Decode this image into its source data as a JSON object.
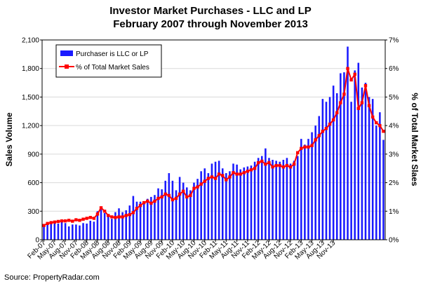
{
  "chart_data": {
    "type": "bar",
    "title": "Investor Market Purchases - LLC and LP",
    "subtitle": "February 2007 through November 2013",
    "ylabel": "Sales Volume",
    "y2label": "% of Total Market Slaes",
    "ylim": [
      0,
      2100
    ],
    "y2lim": [
      0,
      7
    ],
    "yticks": [
      "0",
      "300",
      "600",
      "900",
      "1,200",
      "1,500",
      "1,800",
      "2,100"
    ],
    "y2ticks": [
      "0%",
      "1%",
      "2%",
      "3%",
      "4%",
      "5%",
      "6%",
      "7%"
    ],
    "xtick_labels": [
      "Feb-07",
      "May-07",
      "Aug-07",
      "Nov-07",
      "Feb-08",
      "May-08",
      "Aug-08",
      "Nov-08",
      "Feb-09",
      "May-09",
      "Aug-09",
      "Nov-09",
      "Feb-10",
      "May-10",
      "Aug-10",
      "Nov-10",
      "Feb-11",
      "May-11",
      "Aug-11",
      "Nov-11",
      "Feb-12",
      "May-12",
      "Aug-12",
      "Nov-12",
      "Feb-13",
      "May-13",
      "Aug-13",
      "Nov-13"
    ],
    "grid": true,
    "legend_position": "top-left",
    "colors": {
      "bars": "#1a1aff",
      "line": "#ff0000",
      "grid": "#d9d9d9"
    },
    "series": [
      {
        "name": "Purchaser is LLC or LP",
        "type": "bar",
        "axis": "left",
        "values": [
          150,
          175,
          190,
          180,
          170,
          190,
          175,
          140,
          160,
          160,
          150,
          175,
          170,
          200,
          190,
          300,
          340,
          280,
          240,
          220,
          290,
          330,
          290,
          310,
          360,
          460,
          400,
          400,
          390,
          430,
          450,
          470,
          540,
          530,
          620,
          700,
          620,
          520,
          660,
          600,
          550,
          520,
          600,
          640,
          720,
          750,
          700,
          800,
          820,
          830,
          750,
          700,
          720,
          800,
          790,
          740,
          760,
          770,
          780,
          820,
          860,
          880,
          960,
          860,
          840,
          830,
          820,
          840,
          860,
          800,
          830,
          880,
          1060,
          1000,
          1060,
          1130,
          1200,
          1300,
          1480,
          1450,
          1500,
          1620,
          1540,
          1750,
          1760,
          2030,
          1450,
          1780,
          1860,
          1600,
          1650,
          1500,
          1480,
          1200,
          1340,
          1050
        ]
      },
      {
        "name": "% of Total Market Sales",
        "type": "line",
        "axis": "right",
        "values": [
          0.5,
          0.57,
          0.6,
          0.62,
          0.64,
          0.66,
          0.66,
          0.68,
          0.65,
          0.7,
          0.68,
          0.72,
          0.75,
          0.78,
          0.75,
          0.9,
          1.12,
          1.0,
          0.85,
          0.8,
          0.78,
          0.8,
          0.8,
          0.85,
          0.88,
          0.95,
          1.1,
          1.2,
          1.3,
          1.35,
          1.28,
          1.35,
          1.45,
          1.5,
          1.6,
          1.55,
          1.4,
          1.45,
          1.6,
          1.7,
          1.5,
          1.55,
          1.8,
          1.85,
          1.95,
          2.05,
          2.15,
          2.2,
          2.15,
          2.3,
          2.25,
          2.1,
          2.2,
          2.35,
          2.3,
          2.3,
          2.35,
          2.4,
          2.45,
          2.5,
          2.7,
          2.75,
          2.65,
          2.7,
          2.55,
          2.6,
          2.6,
          2.55,
          2.6,
          2.55,
          2.65,
          3.05,
          3.2,
          3.25,
          3.25,
          3.3,
          3.5,
          3.65,
          3.8,
          3.9,
          4.05,
          4.2,
          4.45,
          4.8,
          5.1,
          6.0,
          5.6,
          5.8,
          4.6,
          4.8,
          5.4,
          4.7,
          4.3,
          4.1,
          4.0,
          3.8
        ]
      }
    ],
    "source": "Source: PropertyRadar.com"
  }
}
